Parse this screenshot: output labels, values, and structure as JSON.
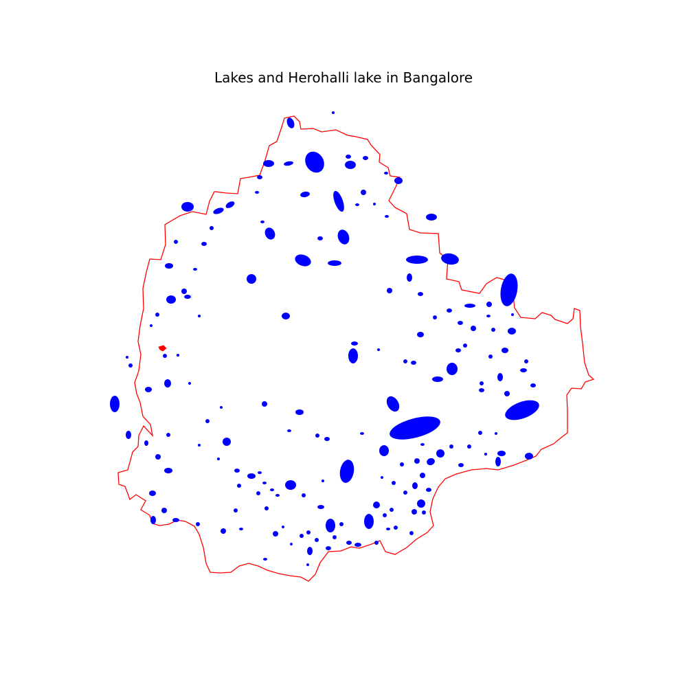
{
  "map": {
    "title": "Lakes and Herohalli lake in Bangalore",
    "boundary_color": "#ff0000",
    "lake_color": "#0000ff",
    "highlight_lake_color": "#ff0000",
    "highlight_lake_name": "Herohalli lake",
    "layers": [
      "city-boundary",
      "lakes",
      "herohalli-lake"
    ],
    "axes_visible": false
  }
}
